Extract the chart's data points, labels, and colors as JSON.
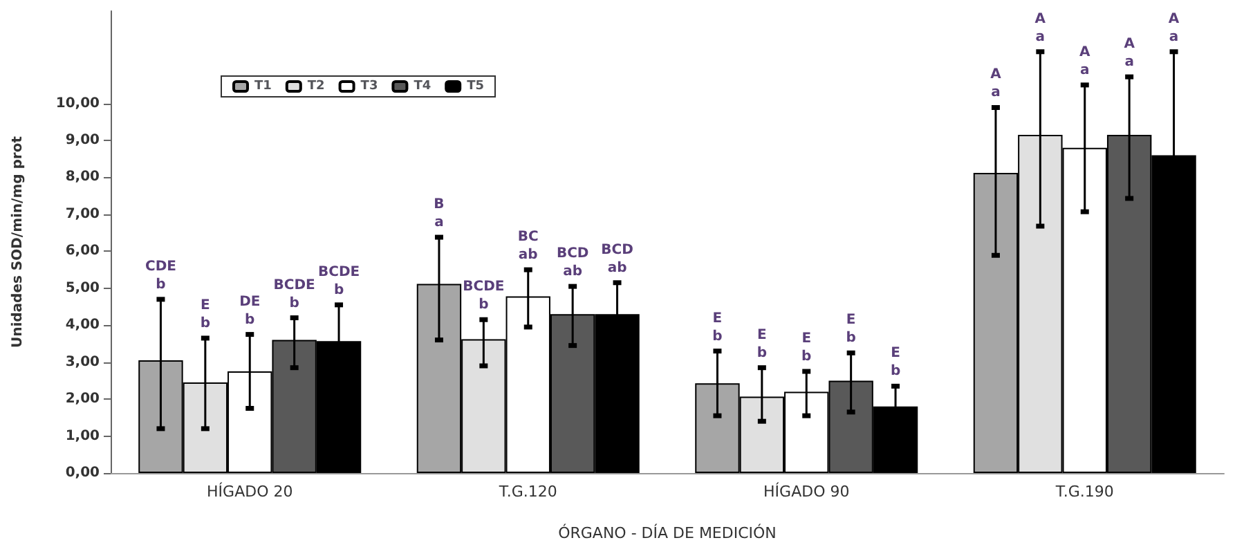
{
  "chart_data": {
    "type": "bar",
    "xlabel": "ÓRGANO - DÍA DE MEDICIÓN",
    "ylabel": "Unidades SOD/min/mg prot",
    "categories": [
      "HÍGADO 20",
      "T.G.120",
      "HÍGADO 90",
      "T.G.190"
    ],
    "series": [
      {
        "name": "T1",
        "color": "#a6a6a6",
        "values": [
          3.05,
          5.12,
          2.43,
          8.12
        ],
        "errors": [
          [
            1.2,
            4.7
          ],
          [
            3.6,
            6.38
          ],
          [
            1.55,
            3.3
          ],
          [
            5.89,
            9.89
          ]
        ]
      },
      {
        "name": "T2",
        "color": "#e0e0e0",
        "values": [
          2.45,
          3.62,
          2.07,
          9.15
        ],
        "errors": [
          [
            1.2,
            3.65
          ],
          [
            2.9,
            4.15
          ],
          [
            1.4,
            2.85
          ],
          [
            6.68,
            11.4
          ]
        ]
      },
      {
        "name": "T3",
        "color": "#ffffff",
        "values": [
          2.75,
          4.78,
          2.2,
          8.8
        ],
        "errors": [
          [
            1.75,
            3.75
          ],
          [
            3.95,
            5.5
          ],
          [
            1.55,
            2.75
          ],
          [
            7.07,
            10.5
          ]
        ]
      },
      {
        "name": "T4",
        "color": "#595959",
        "values": [
          3.6,
          4.3,
          2.5,
          9.15
        ],
        "errors": [
          [
            2.85,
            4.2
          ],
          [
            3.45,
            5.05
          ],
          [
            1.65,
            3.25
          ],
          [
            7.43,
            10.72
          ]
        ]
      },
      {
        "name": "T5",
        "color": "#000000",
        "values": [
          3.57,
          4.3,
          1.8,
          8.6
        ],
        "errors": [
          0.98,
          0.85,
          0.55,
          2.8
        ]
      }
    ],
    "annotations": [
      "CDE\nb",
      "E\nb",
      "DE\nb",
      "BCDE\nb",
      "BCDE\nb",
      "B\na",
      "BCDE\nb",
      "BC\nab",
      "BCD\nab",
      "BCD\nab",
      "E\nb",
      "E\nb",
      "E\nb",
      "E\nb",
      "E\nb",
      "A\na",
      "A\na",
      "A\na",
      "A\na",
      "A\na"
    ],
    "ylim": [
      0,
      12.5
    ],
    "yticks": [
      {
        "value": 0,
        "label": "0,00"
      },
      {
        "value": 1,
        "label": "1,00"
      },
      {
        "value": 2,
        "label": "2,00"
      },
      {
        "value": 3,
        "label": "3,00"
      },
      {
        "value": 4,
        "label": "4,00"
      },
      {
        "value": 5,
        "label": "5,00"
      },
      {
        "value": 6,
        "label": "6,00"
      },
      {
        "value": 7,
        "label": "7,00"
      },
      {
        "value": 8,
        "label": "8,00"
      },
      {
        "value": 9,
        "label": "9,00"
      },
      {
        "value": 10,
        "label": "10,00"
      }
    ],
    "grid": false,
    "legend": "top left"
  }
}
